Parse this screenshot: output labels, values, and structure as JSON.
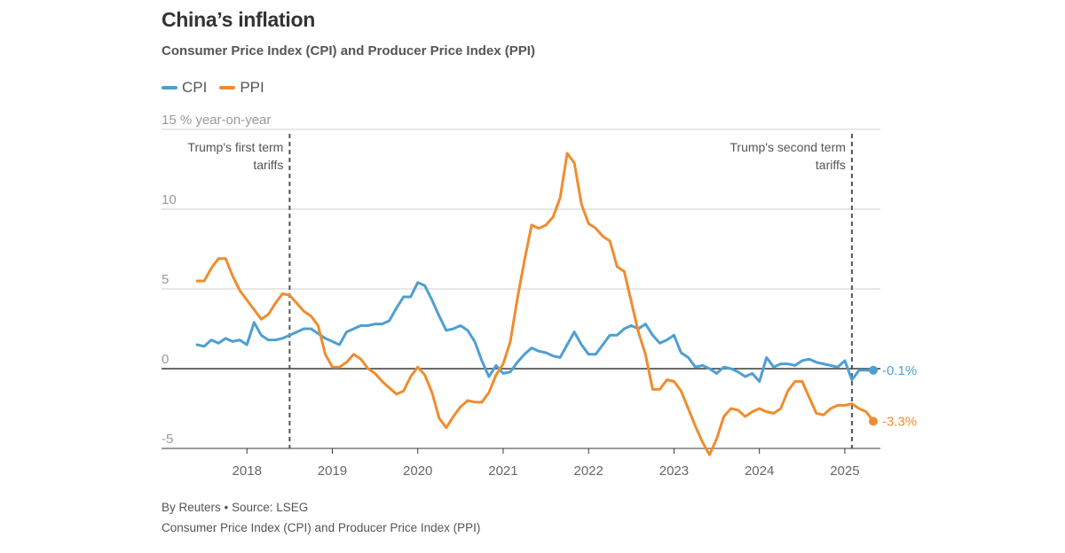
{
  "header": {
    "title": "China’s inflation",
    "subtitle": "Consumer Price Index (CPI) and Producer Price Index (PPI)"
  },
  "legend": [
    {
      "label": "CPI",
      "color": "#4e9fd1"
    },
    {
      "label": "PPI",
      "color": "#f08c2e"
    }
  ],
  "footer": {
    "credit": "By Reuters • Source: LSEG",
    "note": "Consumer Price Index (CPI) and Producer Price Index (PPI)"
  },
  "chart_data": {
    "type": "line",
    "ylabel": "% year-on-year",
    "ylim": [
      -5,
      15
    ],
    "yticks": [
      -5,
      0,
      5,
      10,
      15
    ],
    "xlim": [
      "2017-01",
      "2025-06"
    ],
    "xticks": [
      "2018",
      "2019",
      "2020",
      "2021",
      "2022",
      "2023",
      "2024",
      "2025"
    ],
    "grid": true,
    "legend_position": "top-left",
    "annotations": [
      {
        "date": "2018-07",
        "lines": [
          "Trump's first term",
          "tariffs"
        ],
        "align": "left-of-line"
      },
      {
        "date": "2025-02",
        "lines": [
          "Trump's second term",
          "tariffs"
        ],
        "align": "left-of-line"
      }
    ],
    "end_labels": [
      {
        "series": "CPI",
        "text": "-0.1%"
      },
      {
        "series": "PPI",
        "text": "-3.3%"
      }
    ],
    "series": [
      {
        "name": "CPI",
        "color": "#4e9fd1",
        "points": [
          [
            "2017-06",
            1.5
          ],
          [
            "2017-07",
            1.4
          ],
          [
            "2017-08",
            1.8
          ],
          [
            "2017-09",
            1.6
          ],
          [
            "2017-10",
            1.9
          ],
          [
            "2017-11",
            1.7
          ],
          [
            "2017-12",
            1.8
          ],
          [
            "2018-01",
            1.5
          ],
          [
            "2018-02",
            2.9
          ],
          [
            "2018-03",
            2.1
          ],
          [
            "2018-04",
            1.8
          ],
          [
            "2018-05",
            1.8
          ],
          [
            "2018-06",
            1.9
          ],
          [
            "2018-07",
            2.1
          ],
          [
            "2018-08",
            2.3
          ],
          [
            "2018-09",
            2.5
          ],
          [
            "2018-10",
            2.5
          ],
          [
            "2018-11",
            2.2
          ],
          [
            "2018-12",
            1.9
          ],
          [
            "2019-01",
            1.7
          ],
          [
            "2019-02",
            1.5
          ],
          [
            "2019-03",
            2.3
          ],
          [
            "2019-04",
            2.5
          ],
          [
            "2019-05",
            2.7
          ],
          [
            "2019-06",
            2.7
          ],
          [
            "2019-07",
            2.8
          ],
          [
            "2019-08",
            2.8
          ],
          [
            "2019-09",
            3.0
          ],
          [
            "2019-10",
            3.8
          ],
          [
            "2019-11",
            4.5
          ],
          [
            "2019-12",
            4.5
          ],
          [
            "2020-01",
            5.4
          ],
          [
            "2020-02",
            5.2
          ],
          [
            "2020-03",
            4.3
          ],
          [
            "2020-04",
            3.3
          ],
          [
            "2020-05",
            2.4
          ],
          [
            "2020-06",
            2.5
          ],
          [
            "2020-07",
            2.7
          ],
          [
            "2020-08",
            2.4
          ],
          [
            "2020-09",
            1.7
          ],
          [
            "2020-10",
            0.5
          ],
          [
            "2020-11",
            -0.5
          ],
          [
            "2020-12",
            0.2
          ],
          [
            "2021-01",
            -0.3
          ],
          [
            "2021-02",
            -0.2
          ],
          [
            "2021-03",
            0.4
          ],
          [
            "2021-04",
            0.9
          ],
          [
            "2021-05",
            1.3
          ],
          [
            "2021-06",
            1.1
          ],
          [
            "2021-07",
            1.0
          ],
          [
            "2021-08",
            0.8
          ],
          [
            "2021-09",
            0.7
          ],
          [
            "2021-10",
            1.5
          ],
          [
            "2021-11",
            2.3
          ],
          [
            "2021-12",
            1.5
          ],
          [
            "2022-01",
            0.9
          ],
          [
            "2022-02",
            0.9
          ],
          [
            "2022-03",
            1.5
          ],
          [
            "2022-04",
            2.1
          ],
          [
            "2022-05",
            2.1
          ],
          [
            "2022-06",
            2.5
          ],
          [
            "2022-07",
            2.7
          ],
          [
            "2022-08",
            2.5
          ],
          [
            "2022-09",
            2.8
          ],
          [
            "2022-10",
            2.1
          ],
          [
            "2022-11",
            1.6
          ],
          [
            "2022-12",
            1.8
          ],
          [
            "2023-01",
            2.1
          ],
          [
            "2023-02",
            1.0
          ],
          [
            "2023-03",
            0.7
          ],
          [
            "2023-04",
            0.1
          ],
          [
            "2023-05",
            0.2
          ],
          [
            "2023-06",
            0.0
          ],
          [
            "2023-07",
            -0.3
          ],
          [
            "2023-08",
            0.1
          ],
          [
            "2023-09",
            0.0
          ],
          [
            "2023-10",
            -0.2
          ],
          [
            "2023-11",
            -0.5
          ],
          [
            "2023-12",
            -0.3
          ],
          [
            "2024-01",
            -0.8
          ],
          [
            "2024-02",
            0.7
          ],
          [
            "2024-03",
            0.1
          ],
          [
            "2024-04",
            0.3
          ],
          [
            "2024-05",
            0.3
          ],
          [
            "2024-06",
            0.2
          ],
          [
            "2024-07",
            0.5
          ],
          [
            "2024-08",
            0.6
          ],
          [
            "2024-09",
            0.4
          ],
          [
            "2024-10",
            0.3
          ],
          [
            "2024-11",
            0.2
          ],
          [
            "2024-12",
            0.1
          ],
          [
            "2025-01",
            0.5
          ],
          [
            "2025-02",
            -0.7
          ],
          [
            "2025-03",
            -0.1
          ],
          [
            "2025-04",
            -0.1
          ],
          [
            "2025-05",
            -0.1
          ]
        ]
      },
      {
        "name": "PPI",
        "color": "#f08c2e",
        "points": [
          [
            "2017-06",
            5.5
          ],
          [
            "2017-07",
            5.5
          ],
          [
            "2017-08",
            6.3
          ],
          [
            "2017-09",
            6.9
          ],
          [
            "2017-10",
            6.9
          ],
          [
            "2017-11",
            5.8
          ],
          [
            "2017-12",
            4.9
          ],
          [
            "2018-01",
            4.3
          ],
          [
            "2018-02",
            3.7
          ],
          [
            "2018-03",
            3.1
          ],
          [
            "2018-04",
            3.4
          ],
          [
            "2018-05",
            4.1
          ],
          [
            "2018-06",
            4.7
          ],
          [
            "2018-07",
            4.6
          ],
          [
            "2018-08",
            4.1
          ],
          [
            "2018-09",
            3.6
          ],
          [
            "2018-10",
            3.3
          ],
          [
            "2018-11",
            2.7
          ],
          [
            "2018-12",
            0.9
          ],
          [
            "2019-01",
            0.1
          ],
          [
            "2019-02",
            0.1
          ],
          [
            "2019-03",
            0.4
          ],
          [
            "2019-04",
            0.9
          ],
          [
            "2019-05",
            0.6
          ],
          [
            "2019-06",
            0.0
          ],
          [
            "2019-07",
            -0.3
          ],
          [
            "2019-08",
            -0.8
          ],
          [
            "2019-09",
            -1.2
          ],
          [
            "2019-10",
            -1.6
          ],
          [
            "2019-11",
            -1.4
          ],
          [
            "2019-12",
            -0.5
          ],
          [
            "2020-01",
            0.1
          ],
          [
            "2020-02",
            -0.4
          ],
          [
            "2020-03",
            -1.5
          ],
          [
            "2020-04",
            -3.1
          ],
          [
            "2020-05",
            -3.7
          ],
          [
            "2020-06",
            -3.0
          ],
          [
            "2020-07",
            -2.4
          ],
          [
            "2020-08",
            -2.0
          ],
          [
            "2020-09",
            -2.1
          ],
          [
            "2020-10",
            -2.1
          ],
          [
            "2020-11",
            -1.5
          ],
          [
            "2020-12",
            -0.4
          ],
          [
            "2021-01",
            0.3
          ],
          [
            "2021-02",
            1.7
          ],
          [
            "2021-03",
            4.4
          ],
          [
            "2021-04",
            6.8
          ],
          [
            "2021-05",
            9.0
          ],
          [
            "2021-06",
            8.8
          ],
          [
            "2021-07",
            9.0
          ],
          [
            "2021-08",
            9.5
          ],
          [
            "2021-09",
            10.7
          ],
          [
            "2021-10",
            13.5
          ],
          [
            "2021-11",
            12.9
          ],
          [
            "2021-12",
            10.3
          ],
          [
            "2022-01",
            9.1
          ],
          [
            "2022-02",
            8.8
          ],
          [
            "2022-03",
            8.3
          ],
          [
            "2022-04",
            8.0
          ],
          [
            "2022-05",
            6.4
          ],
          [
            "2022-06",
            6.1
          ],
          [
            "2022-07",
            4.2
          ],
          [
            "2022-08",
            2.3
          ],
          [
            "2022-09",
            0.9
          ],
          [
            "2022-10",
            -1.3
          ],
          [
            "2022-11",
            -1.3
          ],
          [
            "2022-12",
            -0.7
          ],
          [
            "2023-01",
            -0.8
          ],
          [
            "2023-02",
            -1.4
          ],
          [
            "2023-03",
            -2.5
          ],
          [
            "2023-04",
            -3.6
          ],
          [
            "2023-05",
            -4.6
          ],
          [
            "2023-06",
            -5.4
          ],
          [
            "2023-07",
            -4.4
          ],
          [
            "2023-08",
            -3.0
          ],
          [
            "2023-09",
            -2.5
          ],
          [
            "2023-10",
            -2.6
          ],
          [
            "2023-11",
            -3.0
          ],
          [
            "2023-12",
            -2.7
          ],
          [
            "2024-01",
            -2.5
          ],
          [
            "2024-02",
            -2.7
          ],
          [
            "2024-03",
            -2.8
          ],
          [
            "2024-04",
            -2.5
          ],
          [
            "2024-05",
            -1.4
          ],
          [
            "2024-06",
            -0.8
          ],
          [
            "2024-07",
            -0.8
          ],
          [
            "2024-08",
            -1.8
          ],
          [
            "2024-09",
            -2.8
          ],
          [
            "2024-10",
            -2.9
          ],
          [
            "2024-11",
            -2.5
          ],
          [
            "2024-12",
            -2.3
          ],
          [
            "2025-01",
            -2.3
          ],
          [
            "2025-02",
            -2.2
          ],
          [
            "2025-03",
            -2.5
          ],
          [
            "2025-04",
            -2.7
          ],
          [
            "2025-05",
            -3.3
          ]
        ]
      }
    ]
  }
}
